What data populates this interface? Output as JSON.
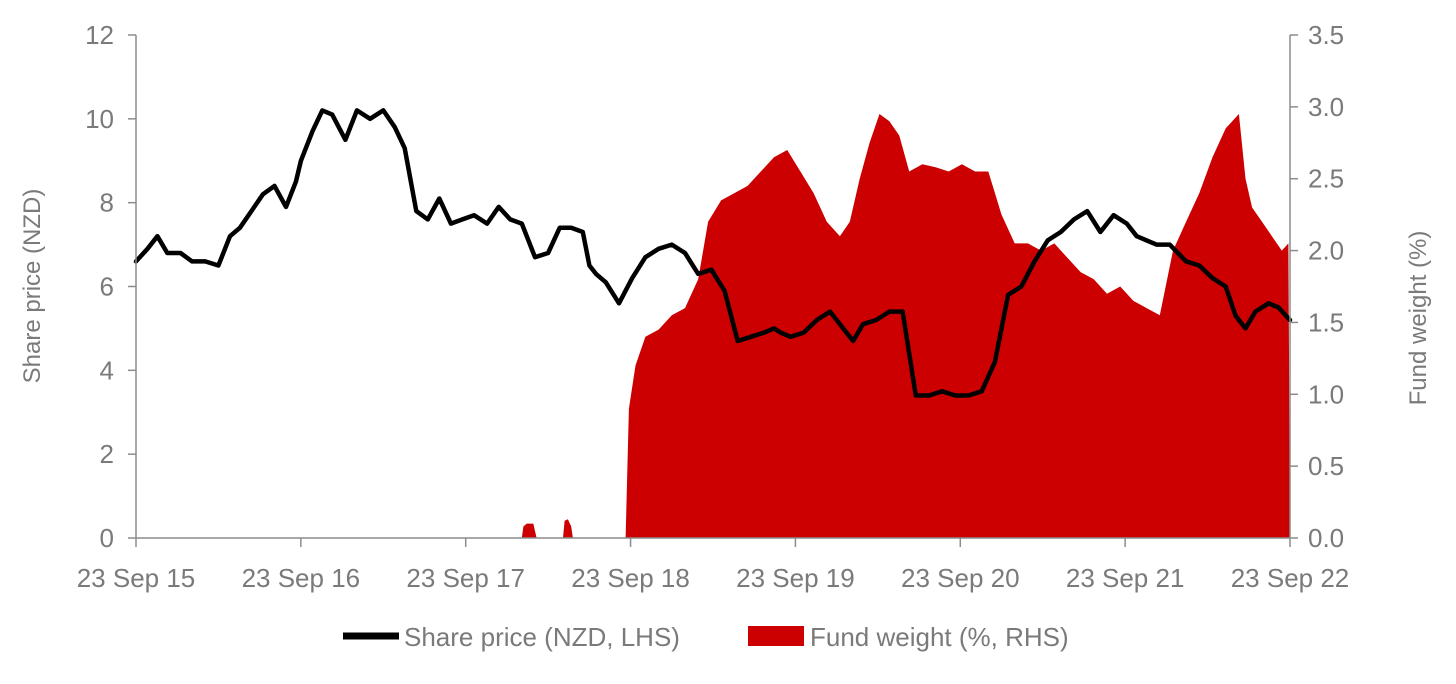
{
  "chart_data": {
    "type": "line",
    "ylabel_left": "Share price (NZD)",
    "ylabel_right": "Fund weight (%)",
    "x_tick_labels": [
      "23 Sep 15",
      "23 Sep 16",
      "23 Sep 17",
      "23 Sep 18",
      "23 Sep 19",
      "23 Sep 20",
      "23 Sep 21",
      "23 Sep 22"
    ],
    "y_left_ticks": [
      "0",
      "2",
      "4",
      "6",
      "8",
      "10",
      "12"
    ],
    "y_right_ticks": [
      "0.0",
      "0.5",
      "1.0",
      "1.5",
      "2.0",
      "2.5",
      "3.0",
      "3.5"
    ],
    "ylim_left": [
      0,
      12
    ],
    "ylim_right": [
      0,
      3.5
    ],
    "xlim": [
      2015.73,
      2022.73
    ],
    "legend_position": "bottom",
    "series": [
      {
        "name": "Share price (NZD, LHS)",
        "kind": "line",
        "axis": "left",
        "color": "#000000",
        "x": [
          2015.73,
          2015.8,
          2015.86,
          2015.92,
          2016.0,
          2016.07,
          2016.15,
          2016.23,
          2016.3,
          2016.36,
          2016.43,
          2016.5,
          2016.57,
          2016.64,
          2016.7,
          2016.73,
          2016.8,
          2016.86,
          2016.92,
          2017.0,
          2017.07,
          2017.15,
          2017.23,
          2017.3,
          2017.36,
          2017.43,
          2017.5,
          2017.57,
          2017.64,
          2017.71,
          2017.78,
          2017.86,
          2017.93,
          2018.0,
          2018.07,
          2018.15,
          2018.23,
          2018.3,
          2018.37,
          2018.44,
          2018.48,
          2018.52,
          2018.58,
          2018.66,
          2018.74,
          2018.82,
          2018.9,
          2018.98,
          2019.06,
          2019.14,
          2019.22,
          2019.3,
          2019.38,
          2019.46,
          2019.54,
          2019.6,
          2019.64,
          2019.7,
          2019.78,
          2019.86,
          2019.94,
          2020.02,
          2020.08,
          2020.14,
          2020.22,
          2020.3,
          2020.38,
          2020.46,
          2020.54,
          2020.62,
          2020.7,
          2020.78,
          2020.86,
          2020.94,
          2021.02,
          2021.1,
          2021.18,
          2021.26,
          2021.34,
          2021.42,
          2021.5,
          2021.58,
          2021.66,
          2021.74,
          2021.8,
          2021.86,
          2021.92,
          2022.0,
          2022.1,
          2022.18,
          2022.26,
          2022.34,
          2022.4,
          2022.46,
          2022.52,
          2022.6,
          2022.66,
          2022.73
        ],
        "values": [
          6.6,
          6.9,
          7.2,
          6.8,
          6.8,
          6.6,
          6.6,
          6.5,
          7.2,
          7.4,
          7.8,
          8.2,
          8.4,
          7.9,
          8.5,
          9.0,
          9.7,
          10.2,
          10.1,
          9.5,
          10.2,
          10.0,
          10.2,
          9.8,
          9.3,
          7.8,
          7.6,
          8.1,
          7.5,
          7.6,
          7.7,
          7.5,
          7.9,
          7.6,
          7.5,
          6.7,
          6.8,
          7.4,
          7.4,
          7.3,
          6.5,
          6.3,
          6.1,
          5.6,
          6.2,
          6.7,
          6.9,
          7.0,
          6.8,
          6.3,
          6.4,
          5.9,
          4.7,
          4.8,
          4.9,
          5.0,
          4.9,
          4.8,
          4.9,
          5.2,
          5.4,
          5.0,
          4.7,
          5.1,
          5.2,
          5.4,
          5.4,
          3.4,
          3.4,
          3.5,
          3.4,
          3.4,
          3.5,
          4.2,
          5.8,
          6.0,
          6.6,
          7.1,
          7.3,
          7.6,
          7.8,
          7.3,
          7.7,
          7.5,
          7.2,
          7.1,
          7.0,
          7.0,
          6.6,
          6.5,
          6.2,
          6.0,
          5.3,
          5.0,
          5.4,
          5.6,
          5.5,
          5.2
        ]
      },
      {
        "name": "Fund weight (%, RHS)",
        "kind": "area",
        "axis": "right",
        "color": "#cc0000",
        "x": [
          2015.73,
          2018.07,
          2018.08,
          2018.1,
          2018.14,
          2018.16,
          2018.32,
          2018.33,
          2018.35,
          2018.37,
          2018.38,
          2018.7,
          2018.72,
          2018.76,
          2018.82,
          2018.9,
          2018.98,
          2019.06,
          2019.14,
          2019.2,
          2019.28,
          2019.36,
          2019.44,
          2019.52,
          2019.6,
          2019.68,
          2019.76,
          2019.84,
          2019.92,
          2020.0,
          2020.06,
          2020.12,
          2020.18,
          2020.24,
          2020.3,
          2020.36,
          2020.42,
          2020.5,
          2020.58,
          2020.66,
          2020.74,
          2020.82,
          2020.9,
          2020.98,
          2021.06,
          2021.14,
          2021.22,
          2021.3,
          2021.38,
          2021.46,
          2021.54,
          2021.62,
          2021.7,
          2021.78,
          2021.86,
          2021.94,
          2022.02,
          2022.1,
          2022.18,
          2022.26,
          2022.34,
          2022.42,
          2022.46,
          2022.5,
          2022.56,
          2022.62,
          2022.68,
          2022.72,
          2022.73
        ],
        "values": [
          0,
          0,
          0.08,
          0.1,
          0.1,
          0,
          0,
          0.12,
          0.13,
          0.08,
          0,
          0,
          0.9,
          1.2,
          1.4,
          1.45,
          1.55,
          1.6,
          1.8,
          2.2,
          2.35,
          2.4,
          2.45,
          2.55,
          2.65,
          2.7,
          2.55,
          2.4,
          2.2,
          2.1,
          2.2,
          2.5,
          2.75,
          2.95,
          2.9,
          2.8,
          2.55,
          2.6,
          2.58,
          2.55,
          2.6,
          2.55,
          2.55,
          2.25,
          2.05,
          2.05,
          2.0,
          2.05,
          1.95,
          1.85,
          1.8,
          1.7,
          1.75,
          1.65,
          1.6,
          1.55,
          2.0,
          2.2,
          2.4,
          2.65,
          2.85,
          2.95,
          2.5,
          2.3,
          2.2,
          2.1,
          2.0,
          2.05,
          0
        ]
      }
    ]
  }
}
